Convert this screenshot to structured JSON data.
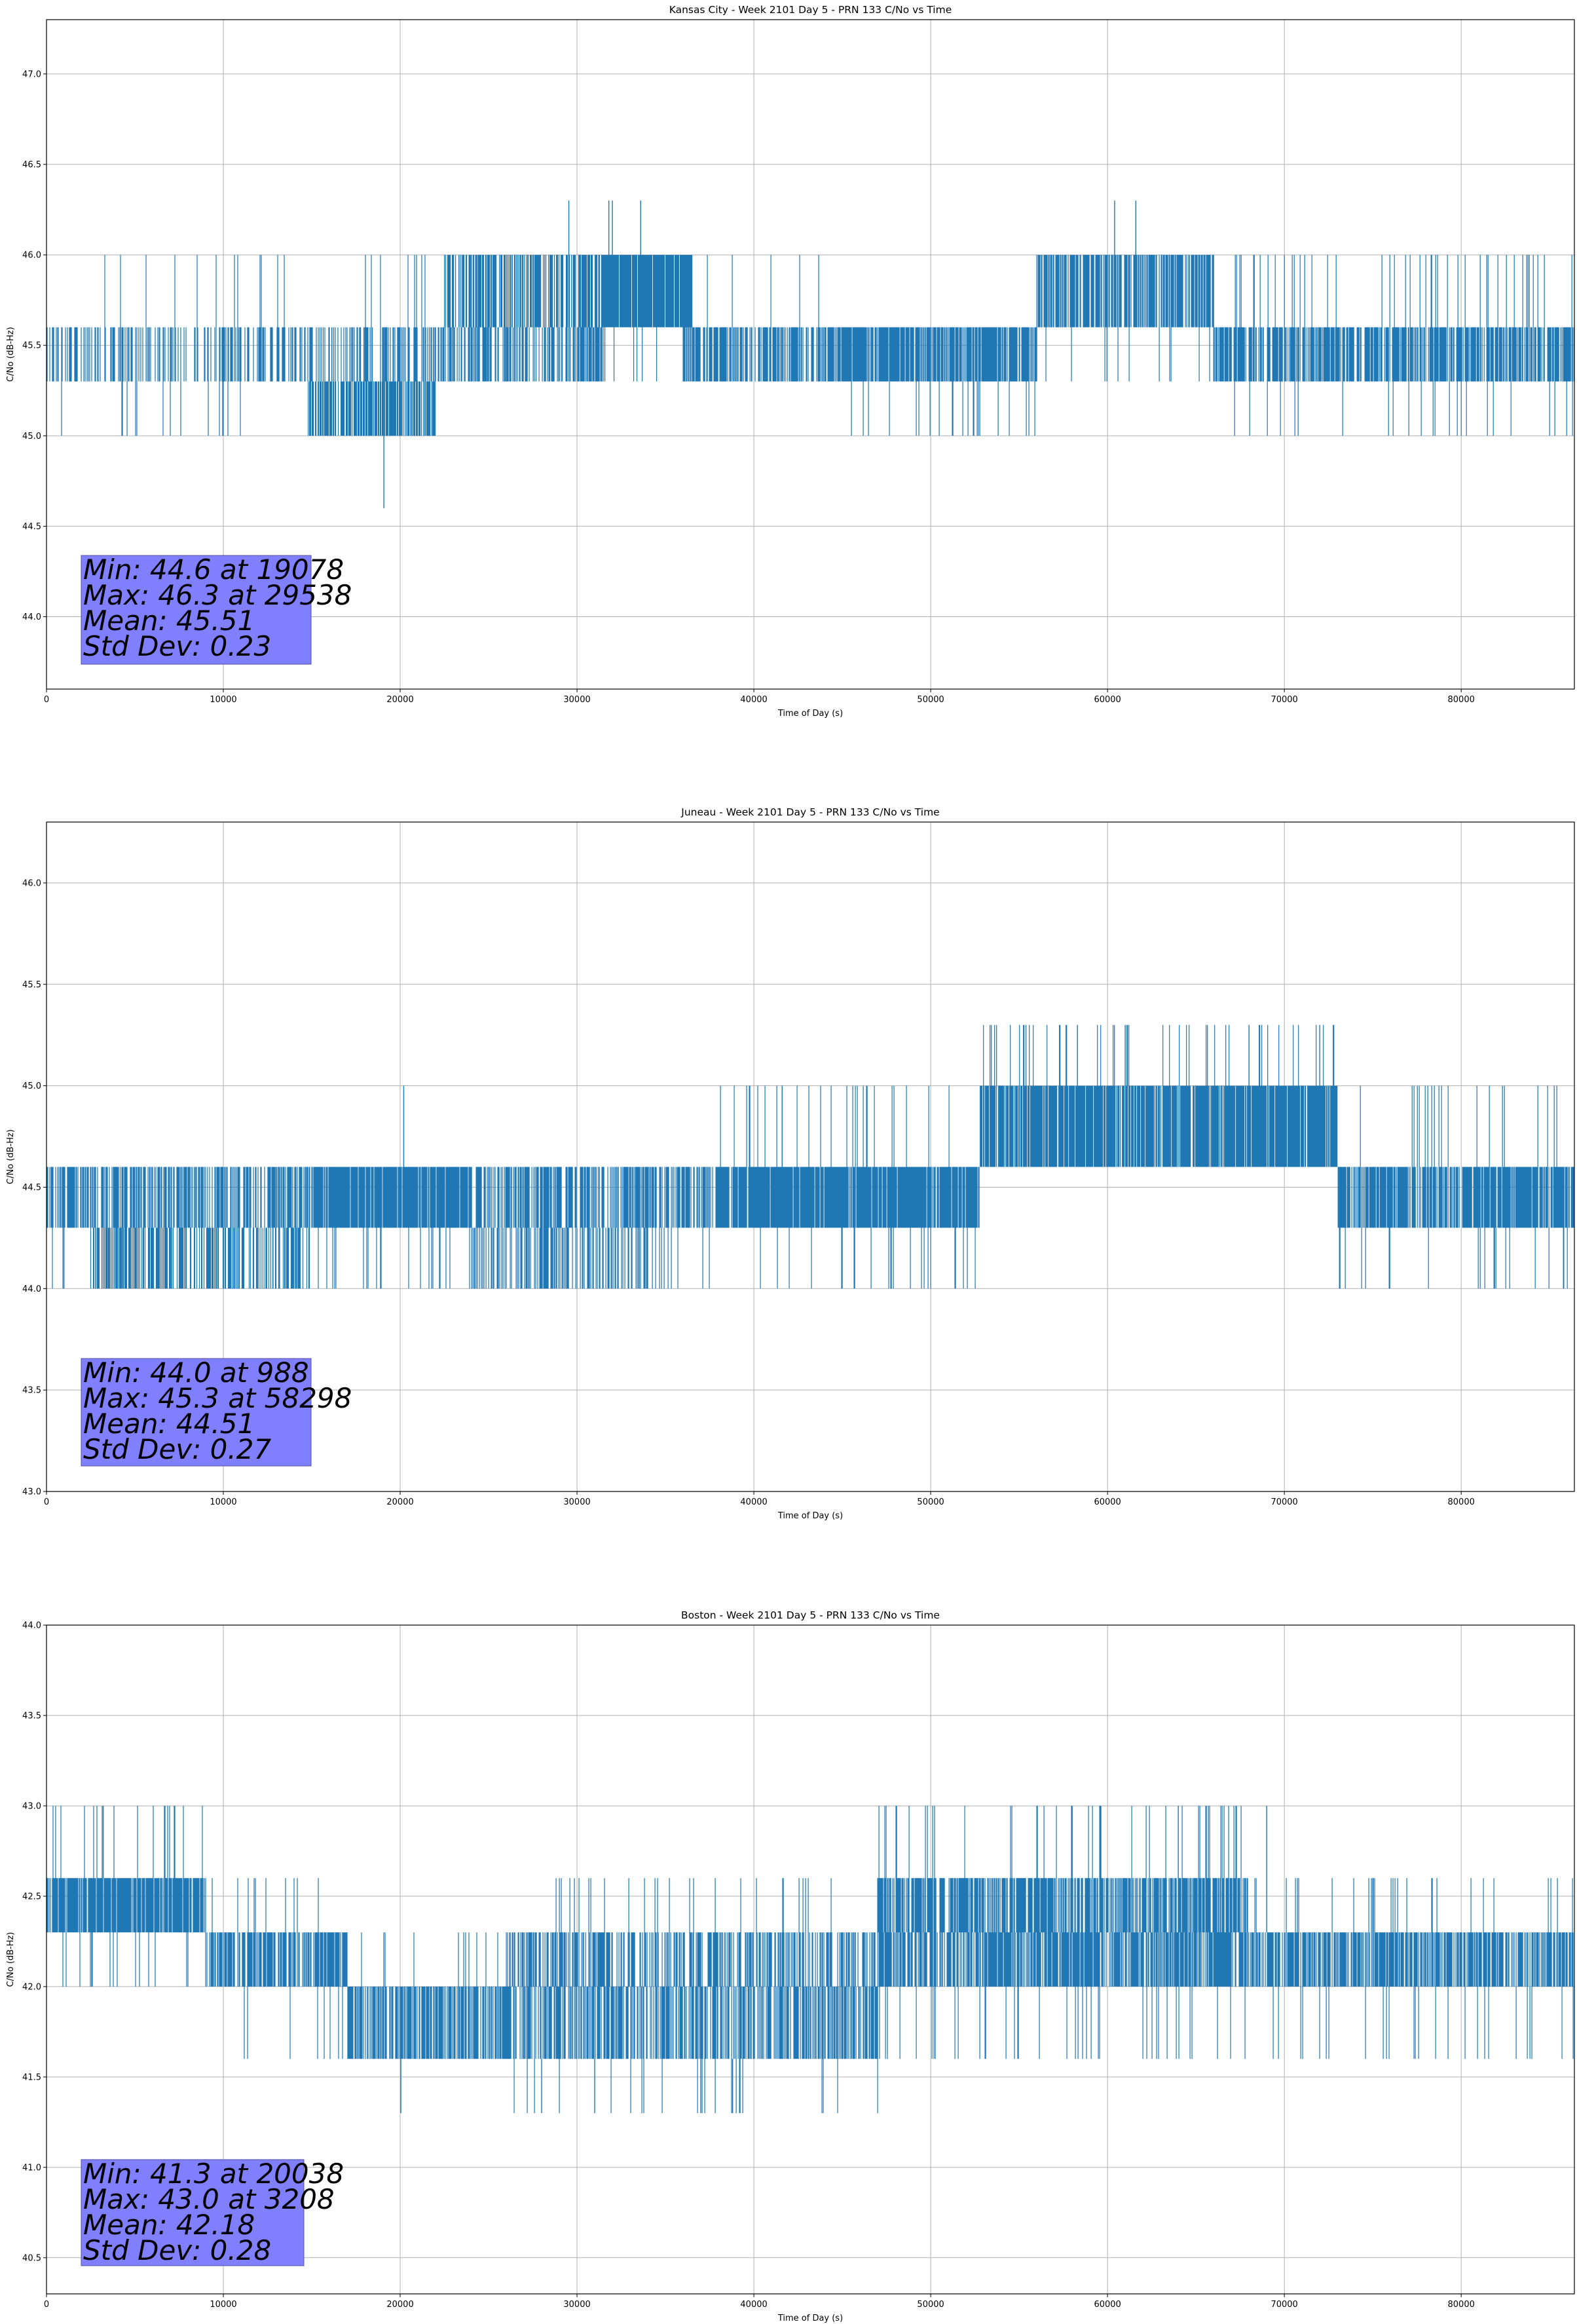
{
  "colors": {
    "series": "#1f77b4",
    "grid": "#b0b0b0",
    "stats_box": "#8080ff",
    "axes": "#000000"
  },
  "chart_data": [
    {
      "type": "line",
      "title": "Kansas City - Week 2101 Day 5 - PRN 133 C/No vs Time",
      "xlabel": "Time of Day (s)",
      "ylabel": "C/No (dB-Hz)",
      "xlim": [
        0,
        86400
      ],
      "ylim": [
        43.6,
        47.3
      ],
      "xticks": [
        0,
        10000,
        20000,
        30000,
        40000,
        50000,
        60000,
        70000,
        80000
      ],
      "yticks": [
        "44.0",
        "44.5",
        "45.0",
        "45.5",
        "46.0",
        "46.5",
        "47.0"
      ],
      "grid": true,
      "stats_box_position": "lower-left",
      "stats": [
        "Min: 44.6 at 19078",
        "Max: 46.3 at 29538",
        "Mean: 45.51",
        "Std Dev: 0.23"
      ],
      "series": [
        {
          "values_summary": "quantized C/No samples, 1 per second",
          "segments": [
            {
              "x": [
                0,
                22000
              ],
              "band": [
                45.3,
                45.6
              ],
              "up": 46.0,
              "down": 45.0,
              "density": 0.4
            },
            {
              "x": [
                14800,
                22000
              ],
              "band": [
                45.0,
                45.3
              ],
              "up": 45.6,
              "down": 45.0,
              "density": 0.7
            },
            {
              "x": [
                22000,
                31500
              ],
              "band": [
                45.3,
                45.6
              ],
              "up": 46.0,
              "down": 45.3,
              "density": 0.5
            },
            {
              "x": [
                22500,
                36000
              ],
              "band": [
                45.6,
                46.0
              ],
              "up": 46.0,
              "down": 45.3,
              "density": 0.6
            },
            {
              "x": [
                31500,
                36500
              ],
              "band": [
                45.6,
                46.0
              ],
              "up": 46.0,
              "down": 45.6,
              "density": 0.9
            },
            {
              "x": [
                36000,
                45000
              ],
              "band": [
                45.3,
                45.6
              ],
              "up": 46.0,
              "down": 45.3,
              "density": 0.7
            },
            {
              "x": [
                45000,
                56000
              ],
              "band": [
                45.3,
                45.6
              ],
              "up": 45.6,
              "down": 45.0,
              "density": 0.8
            },
            {
              "x": [
                56000,
                66000
              ],
              "band": [
                45.6,
                46.0
              ],
              "up": 46.0,
              "down": 45.3,
              "density": 0.7
            },
            {
              "x": [
                66000,
                86400
              ],
              "band": [
                45.3,
                45.6
              ],
              "up": 46.0,
              "down": 45.0,
              "density": 0.7
            }
          ],
          "spikes": [
            [
              19078,
              44.6
            ],
            [
              29538,
              46.3
            ],
            [
              31800,
              46.3
            ],
            [
              32000,
              46.3
            ],
            [
              33600,
              46.3
            ],
            [
              60400,
              46.3
            ],
            [
              61600,
              46.3
            ]
          ]
        }
      ]
    },
    {
      "type": "line",
      "title": "Juneau - Week 2101 Day 5 - PRN 133 C/No vs Time",
      "xlabel": "Time of Day (s)",
      "ylabel": "C/No (dB-Hz)",
      "xlim": [
        0,
        86400
      ],
      "ylim": [
        43.0,
        46.3
      ],
      "xticks": [
        0,
        10000,
        20000,
        30000,
        40000,
        50000,
        60000,
        70000,
        80000
      ],
      "yticks": [
        "43.0",
        "43.5",
        "44.0",
        "44.5",
        "45.0",
        "45.5",
        "46.0"
      ],
      "grid": true,
      "stats_box_position": "lower-left",
      "stats": [
        "Min: 44.0 at 988",
        "Max: 45.3 at 58298",
        "Mean: 44.51",
        "Std Dev: 0.27"
      ],
      "series": [
        {
          "values_summary": "quantized C/No samples, 1 per second",
          "segments": [
            {
              "x": [
                0,
                15000
              ],
              "band": [
                44.3,
                44.6
              ],
              "up": 44.6,
              "down": 44.0,
              "density": 0.6
            },
            {
              "x": [
                2500,
                15000
              ],
              "band": [
                44.0,
                44.3
              ],
              "up": 44.6,
              "down": 44.0,
              "density": 0.5
            },
            {
              "x": [
                15000,
                24000
              ],
              "band": [
                44.3,
                44.6
              ],
              "up": 44.6,
              "down": 44.0,
              "density": 0.9
            },
            {
              "x": [
                24000,
                38000
              ],
              "band": [
                44.3,
                44.6
              ],
              "up": 44.6,
              "down": 44.0,
              "density": 0.6
            },
            {
              "x": [
                24000,
                35000
              ],
              "band": [
                44.0,
                44.3
              ],
              "up": 44.3,
              "down": 44.0,
              "density": 0.4
            },
            {
              "x": [
                38000,
                52800
              ],
              "band": [
                44.3,
                44.6
              ],
              "up": 45.0,
              "down": 44.0,
              "density": 0.9
            },
            {
              "x": [
                52800,
                73000
              ],
              "band": [
                44.6,
                45.0
              ],
              "up": 45.3,
              "down": 44.6,
              "density": 0.85
            },
            {
              "x": [
                73000,
                86400
              ],
              "band": [
                44.3,
                44.6
              ],
              "up": 45.0,
              "down": 44.0,
              "density": 0.8
            }
          ],
          "spikes": [
            [
              988,
              44.0
            ],
            [
              20200,
              45.0
            ],
            [
              41600,
              45.0
            ],
            [
              58298,
              45.3
            ],
            [
              61000,
              45.3
            ],
            [
              68000,
              45.3
            ],
            [
              72000,
              45.3
            ],
            [
              85800,
              44.0
            ]
          ]
        }
      ]
    },
    {
      "type": "line",
      "title": "Boston - Week 2101 Day 5 - PRN 133 C/No vs Time",
      "xlabel": "Time of Day (s)",
      "ylabel": "C/No (dB-Hz)",
      "xlim": [
        0,
        86400
      ],
      "ylim": [
        40.3,
        44.0
      ],
      "xticks": [
        0,
        10000,
        20000,
        30000,
        40000,
        50000,
        60000,
        70000,
        80000
      ],
      "yticks": [
        "40.5",
        "41.0",
        "41.5",
        "42.0",
        "42.5",
        "43.0",
        "43.5",
        "44.0"
      ],
      "grid": true,
      "stats_box_position": "lower-left",
      "stats": [
        "Min: 41.3 at 20038",
        "Max: 43.0 at 3208",
        "Mean: 42.18",
        "Std Dev: 0.28"
      ],
      "series": [
        {
          "values_summary": "quantized C/No samples, 1 per second",
          "segments": [
            {
              "x": [
                0,
                9000
              ],
              "band": [
                42.3,
                42.6
              ],
              "up": 43.0,
              "down": 42.0,
              "density": 0.85
            },
            {
              "x": [
                9000,
                17000
              ],
              "band": [
                42.0,
                42.3
              ],
              "up": 42.6,
              "down": 41.6,
              "density": 0.7
            },
            {
              "x": [
                17000,
                26000
              ],
              "band": [
                41.6,
                42.0
              ],
              "up": 42.3,
              "down": 41.6,
              "density": 0.7
            },
            {
              "x": [
                26000,
                47000
              ],
              "band": [
                41.6,
                42.0
              ],
              "up": 42.3,
              "down": 41.3,
              "density": 0.6
            },
            {
              "x": [
                26000,
                47000
              ],
              "band": [
                42.0,
                42.3
              ],
              "up": 42.6,
              "down": 42.0,
              "density": 0.5
            },
            {
              "x": [
                47000,
                68000
              ],
              "band": [
                42.3,
                42.6
              ],
              "up": 43.0,
              "down": 42.0,
              "density": 0.7
            },
            {
              "x": [
                47000,
                86400
              ],
              "band": [
                42.0,
                42.3
              ],
              "up": 42.6,
              "down": 41.6,
              "density": 0.7
            }
          ],
          "spikes": [
            [
              3208,
              43.0
            ],
            [
              20038,
              41.3
            ],
            [
              28000,
              41.3
            ],
            [
              31000,
              41.3
            ],
            [
              37000,
              41.3
            ],
            [
              38800,
              41.3
            ],
            [
              58000,
              43.0
            ],
            [
              64000,
              43.0
            ],
            [
              69000,
              43.0
            ]
          ]
        }
      ]
    }
  ]
}
